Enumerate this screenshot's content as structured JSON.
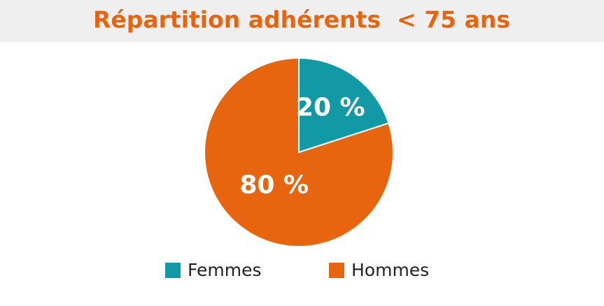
{
  "chart_data": {
    "type": "pie",
    "title": "Répartition adhérents  < 75 ans",
    "categories": [
      "Femmes",
      "Hommes"
    ],
    "values": [
      20,
      80
    ],
    "value_labels": [
      "20 %",
      "80 %"
    ],
    "colors": [
      "#1199a6",
      "#e8650f"
    ]
  }
}
